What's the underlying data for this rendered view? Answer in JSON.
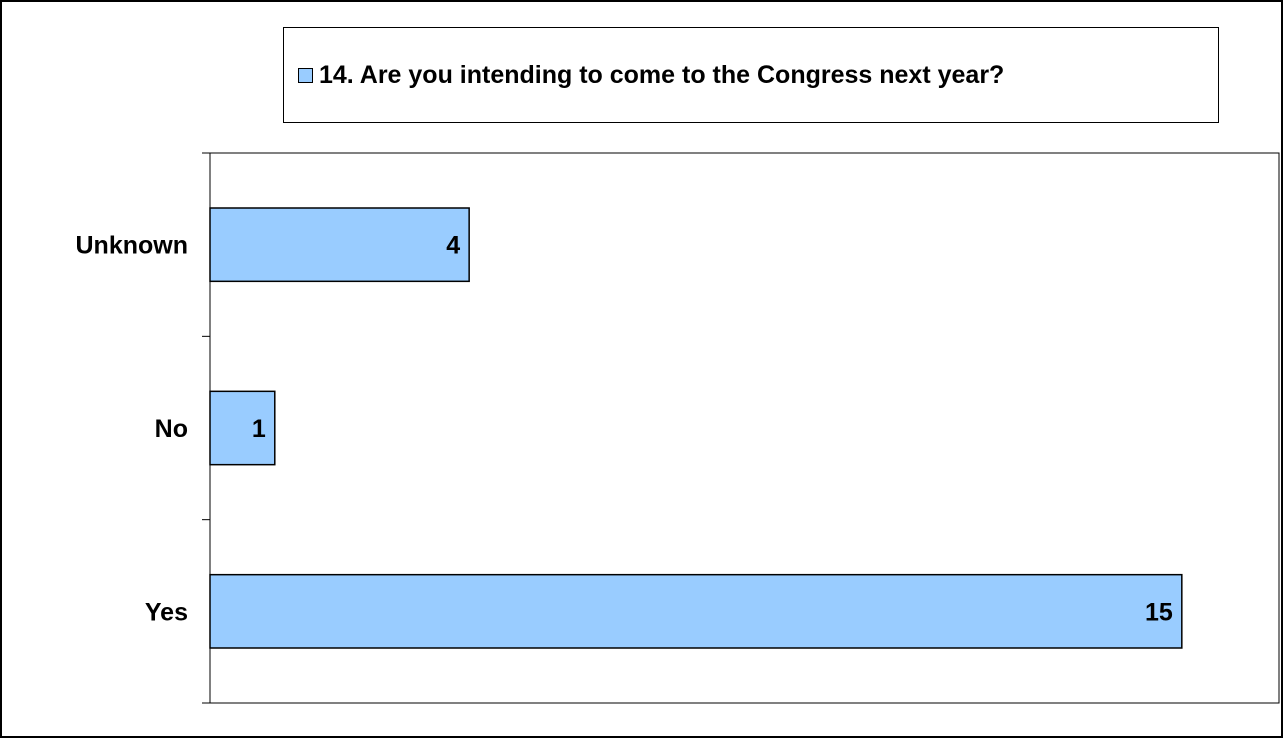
{
  "chart_data": {
    "type": "bar",
    "orientation": "horizontal",
    "categories": [
      "Unknown",
      "No",
      "Yes"
    ],
    "series": [
      {
        "name": "14. Are you intending to come to the Congress next year?",
        "values": [
          4,
          1,
          15
        ]
      }
    ],
    "xlim": [
      0,
      16.5
    ],
    "grid": false,
    "legend_position": "top",
    "colors": {
      "bar_fill": "#99ccff",
      "bar_stroke": "#000000"
    }
  }
}
